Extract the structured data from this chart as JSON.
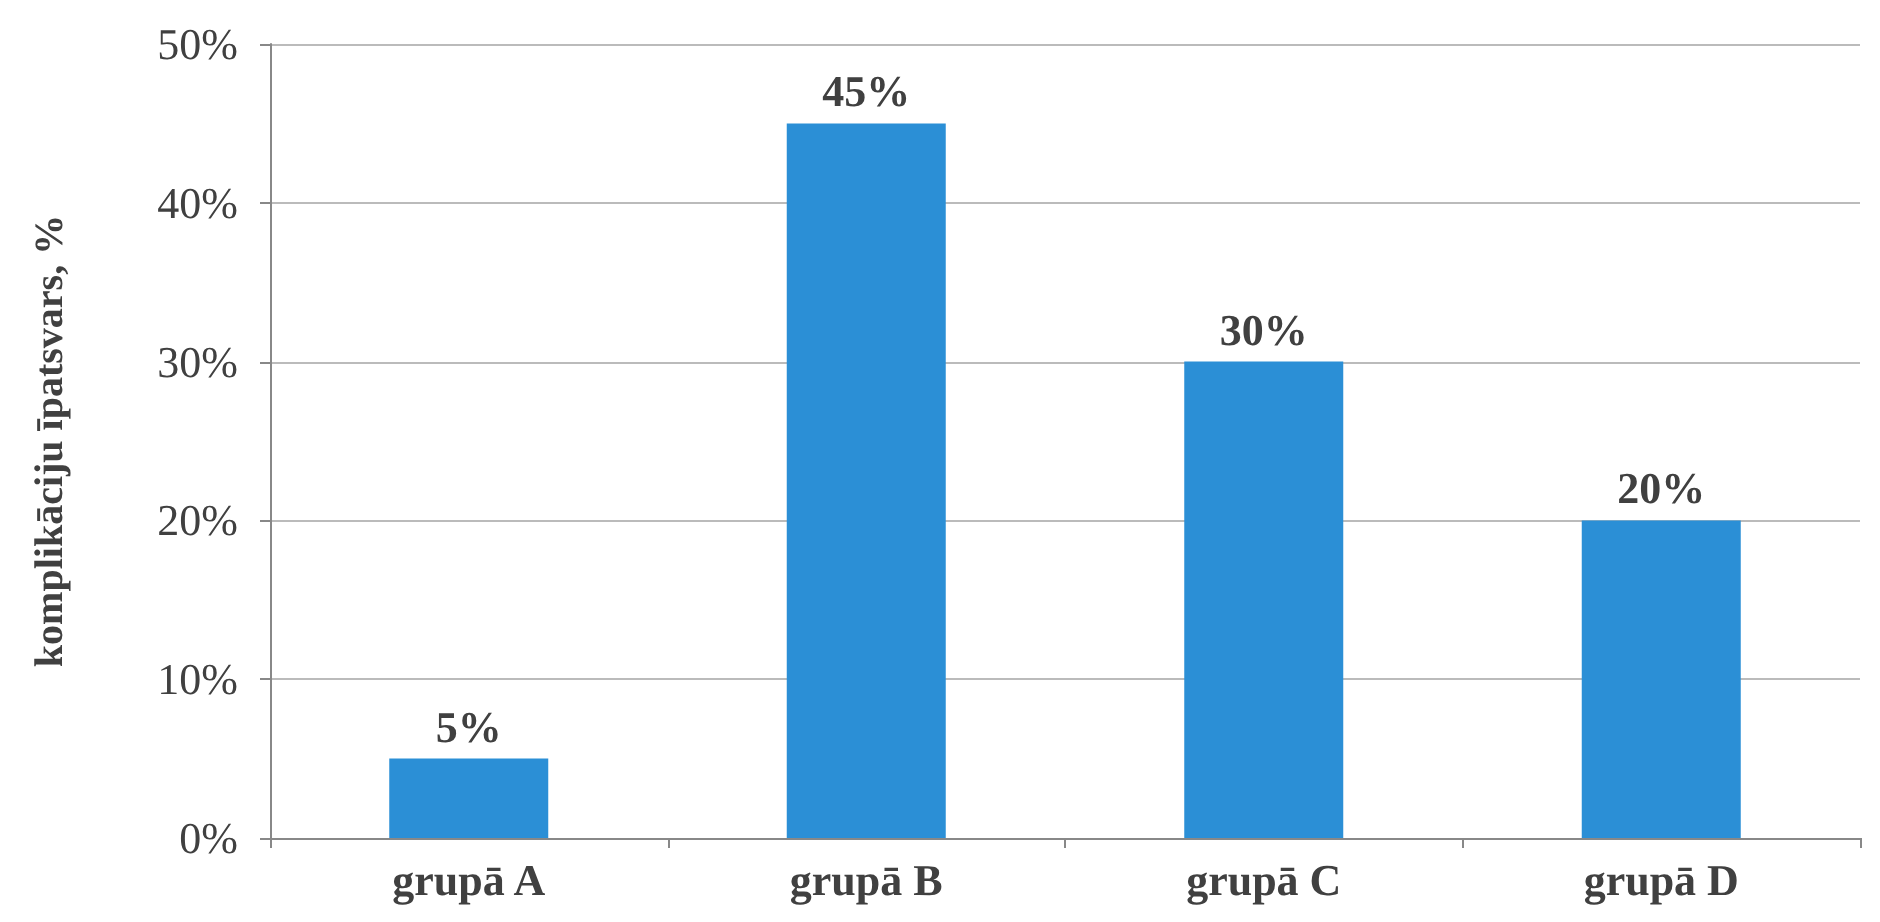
{
  "chart_data": {
    "type": "bar",
    "ylabel": "komplikāciju īpatsvars, %",
    "categories": [
      "grupā A",
      "grupā B",
      "grupā C",
      "grupā D"
    ],
    "values": [
      5,
      45,
      30,
      20
    ],
    "color": "#2b8fd6",
    "value_labels": [
      "5%",
      "45%",
      "30%",
      "20%"
    ],
    "ylim": [
      0,
      50
    ],
    "yticks": [
      {
        "value": 0,
        "label": "0%"
      },
      {
        "value": 10,
        "label": "10%"
      },
      {
        "value": 20,
        "label": "20%"
      },
      {
        "value": 30,
        "label": "30%"
      },
      {
        "value": 40,
        "label": "40%"
      },
      {
        "value": 50,
        "label": "50%"
      }
    ],
    "grid": "y"
  }
}
